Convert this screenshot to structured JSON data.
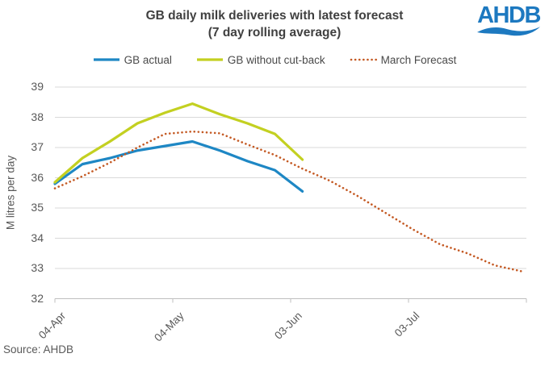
{
  "header": {
    "title_line1": "GB daily milk deliveries with latest forecast",
    "title_line2": "(7 day rolling average)",
    "logo_text": "AHDB",
    "logo_color": "#1d79c0"
  },
  "legend": [
    {
      "label": "GB actual",
      "color": "#1e87c4",
      "style": "solid"
    },
    {
      "label": "GB without cut-back",
      "color": "#c3d021",
      "style": "solid"
    },
    {
      "label": "March Forecast",
      "color": "#c45a24",
      "style": "dotted"
    }
  ],
  "footer": {
    "source": "Source: AHDB"
  },
  "colors": {
    "grid": "#d9d9d9",
    "axis": "#bfbfbf",
    "axis_text": "#595959",
    "title_text": "#404040"
  },
  "chart_data": {
    "type": "line",
    "title": "GB daily milk deliveries with latest forecast (7 day rolling average)",
    "xlabel": "",
    "ylabel": "M litres per day",
    "ylim": [
      32,
      39
    ],
    "yticks": [
      32,
      33,
      34,
      35,
      36,
      37,
      38,
      39
    ],
    "x_range_days": [
      0,
      120
    ],
    "grid": true,
    "legend_position": "top",
    "xticks": [
      {
        "day": 0,
        "label": "04-Apr"
      },
      {
        "day": 30,
        "label": "04-May"
      },
      {
        "day": 60,
        "label": "03-Jun"
      },
      {
        "day": 90,
        "label": "03-Jul"
      },
      {
        "day": 120,
        "label": ""
      }
    ],
    "series": [
      {
        "name": "GB actual",
        "color": "#1e87c4",
        "style": "solid",
        "x_days": [
          0,
          7,
          14,
          21,
          28,
          35,
          42,
          49,
          56,
          63
        ],
        "values": [
          35.8,
          36.45,
          36.65,
          36.9,
          37.05,
          37.2,
          36.9,
          36.55,
          36.25,
          35.55
        ]
      },
      {
        "name": "GB without cut-back",
        "color": "#c3d021",
        "style": "solid",
        "x_days": [
          0,
          7,
          14,
          21,
          28,
          35,
          42,
          49,
          56,
          63
        ],
        "values": [
          35.85,
          36.65,
          37.2,
          37.8,
          38.15,
          38.45,
          38.1,
          37.8,
          37.45,
          36.6
        ]
      },
      {
        "name": "March Forecast",
        "color": "#c45a24",
        "style": "dotted",
        "x_days": [
          0,
          7,
          14,
          21,
          28,
          35,
          42,
          49,
          56,
          63,
          70,
          77,
          84,
          91,
          98,
          105,
          112,
          119
        ],
        "values": [
          35.65,
          36.05,
          36.5,
          37.0,
          37.45,
          37.53,
          37.47,
          37.1,
          36.75,
          36.3,
          35.9,
          35.4,
          34.85,
          34.3,
          33.8,
          33.5,
          33.1,
          32.9
        ]
      }
    ]
  }
}
